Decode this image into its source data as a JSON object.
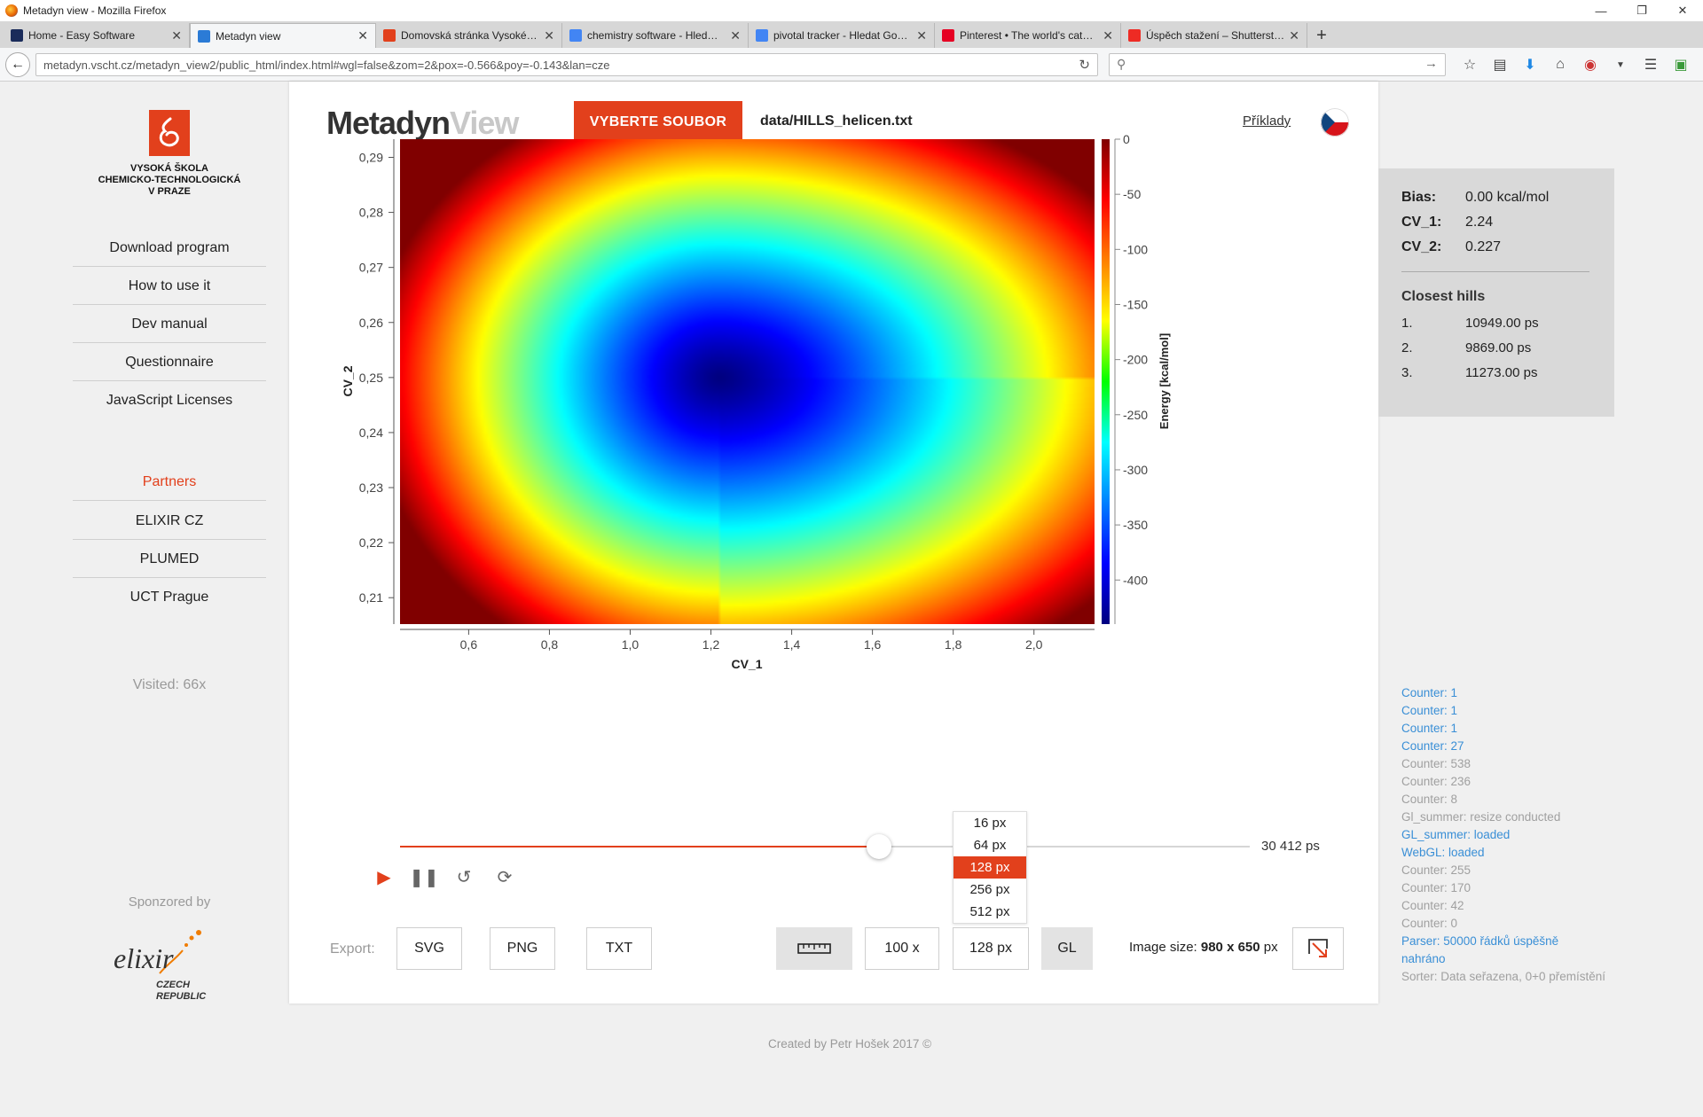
{
  "window": {
    "title": "Metadyn view - Mozilla Firefox"
  },
  "tabs": [
    {
      "label": "Home - Easy Software",
      "color": "#1a2b5a"
    },
    {
      "label": "Metadyn view",
      "color": "#2b7bd6"
    },
    {
      "label": "Domovská stránka Vysoké…",
      "color": "#e2401c"
    },
    {
      "label": "chemistry software - Hled…",
      "color": "#4285f4"
    },
    {
      "label": "pivotal tracker - Hledat Go…",
      "color": "#4285f4"
    },
    {
      "label": "Pinterest • The world's cat…",
      "color": "#e60023"
    },
    {
      "label": "Úspěch stažení – Shutterst…",
      "color": "#ee2b24"
    }
  ],
  "address": {
    "url": "metadyn.vscht.cz/metadyn_view2/public_html/index.html#wgl=false&zom=2&pox=-0.566&poy=-0.143&lan=cze"
  },
  "sidebar": {
    "school": [
      "VYSOKÁ ŠKOLA",
      "CHEMICKO-TECHNOLOGICKÁ",
      "V PRAZE"
    ],
    "menu": [
      "Download program",
      "How to use it",
      "Dev manual",
      "Questionnaire",
      "JavaScript Licenses"
    ],
    "partners_title": "Partners",
    "partners": [
      "ELIXIR CZ",
      "PLUMED",
      "UCT Prague"
    ],
    "visited": "Visited: 66x",
    "sponsored": "Sponzored by",
    "elixir_logo": {
      "word": "elixir",
      "sub1": "CZECH",
      "sub2": "REPUBLIC"
    }
  },
  "header": {
    "brand_1": "Metadyn",
    "brand_2": "View",
    "choose_button": "VYBERTE SOUBOR",
    "filename": "data/HILLS_helicen.txt",
    "examples": "Příklady"
  },
  "chart_data": {
    "type": "heatmap",
    "xlabel": "CV_1",
    "ylabel": "CV_2",
    "x_ticks": [
      "0,6",
      "0,8",
      "1,0",
      "1,2",
      "1,4",
      "1,6",
      "1,8",
      "2,0"
    ],
    "x_tick_values": [
      0.6,
      0.8,
      1.0,
      1.2,
      1.4,
      1.6,
      1.8,
      2.0
    ],
    "xlim": [
      0.43,
      2.15
    ],
    "y_ticks": [
      "0,21",
      "0,22",
      "0,23",
      "0,24",
      "0,25",
      "0,26",
      "0,27",
      "0,28",
      "0,29"
    ],
    "y_tick_values": [
      0.21,
      0.22,
      0.23,
      0.24,
      0.25,
      0.26,
      0.27,
      0.28,
      0.29
    ],
    "ylim": [
      0.2052,
      0.2933
    ],
    "minimum": {
      "x": 1.22,
      "y": 0.25
    },
    "colorbar": {
      "label": "Energy [kcal/mol]",
      "ticks": [
        "0",
        "-50",
        "-100",
        "-150",
        "-200",
        "-250",
        "-300",
        "-350",
        "-400"
      ],
      "tick_values": [
        0,
        -50,
        -100,
        -150,
        -200,
        -250,
        -300,
        -350,
        -400
      ],
      "range": [
        -440,
        0
      ],
      "colormap": "jet (blue = low, red = high)"
    }
  },
  "player": {
    "time": "30 412 ps",
    "progress": 0.564
  },
  "resolution_menu": {
    "options": [
      "16 px",
      "64 px",
      "128 px",
      "256 px",
      "512 px"
    ],
    "selected": "128 px"
  },
  "toolbar": {
    "export_label": "Export:",
    "svg": "SVG",
    "png": "PNG",
    "txt": "TXT",
    "zoom": "100 x",
    "resolution": "128 px",
    "gl": "GL",
    "image_size_label": "Image size:",
    "image_size_value": "980 x 650",
    "image_size_unit": "px"
  },
  "info": {
    "bias_label": "Bias:",
    "bias_value": "0.00 kcal/mol",
    "cv1_label": "CV_1:",
    "cv1_value": "2.24",
    "cv2_label": "CV_2:",
    "cv2_value": "0.227",
    "closest_title": "Closest hills",
    "hills": [
      {
        "n": "1.",
        "value": "10949.00 ps"
      },
      {
        "n": "2.",
        "value": "9869.00 ps"
      },
      {
        "n": "3.",
        "value": "11273.00 ps"
      }
    ]
  },
  "log": [
    {
      "text": "Counter: 1",
      "kind": "blue"
    },
    {
      "text": "Counter: 1",
      "kind": "blue"
    },
    {
      "text": "Counter: 1",
      "kind": "blue"
    },
    {
      "text": "Counter: 27",
      "kind": "blue"
    },
    {
      "text": "Counter: 538",
      "kind": "grey"
    },
    {
      "text": "Counter: 236",
      "kind": "grey"
    },
    {
      "text": "Counter: 8",
      "kind": "grey"
    },
    {
      "text": "Gl_summer: resize conducted",
      "kind": "grey"
    },
    {
      "text": "GL_summer: loaded",
      "kind": "blue"
    },
    {
      "text": "WebGL: loaded",
      "kind": "blue"
    },
    {
      "text": "Counter: 255",
      "kind": "grey"
    },
    {
      "text": "Counter: 170",
      "kind": "grey"
    },
    {
      "text": "Counter: 42",
      "kind": "grey"
    },
    {
      "text": "Counter: 0",
      "kind": "grey"
    },
    {
      "text": "Parser: 50000 řádků úspěšně",
      "kind": "blue"
    },
    {
      "text": "nahráno",
      "kind": "blue"
    },
    {
      "text": "Sorter: Data seřazena, 0+0 přemístění",
      "kind": "grey"
    }
  ],
  "footer": "Created by Petr Hošek 2017 ©",
  "colors": {
    "accent": "#e2401c",
    "panel": "#d9d9d9",
    "log_blue": "#3a8fd6"
  }
}
